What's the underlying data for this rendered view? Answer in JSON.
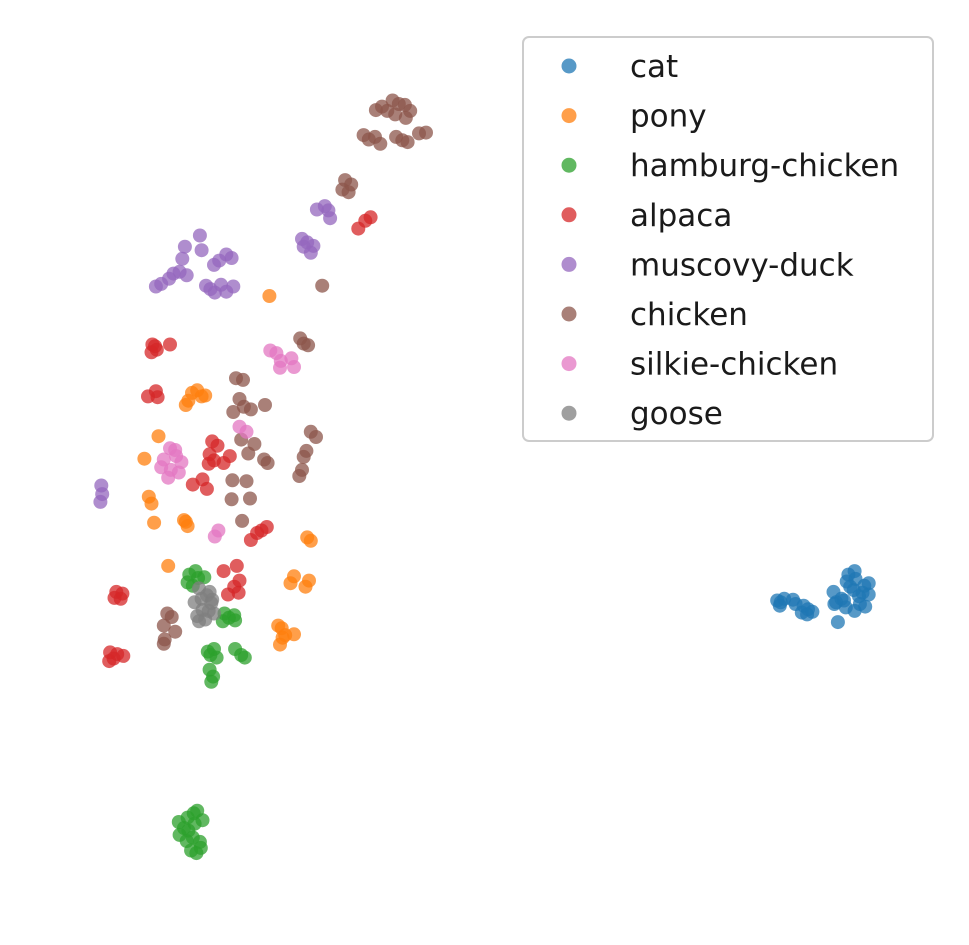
{
  "chart_data": {
    "type": "scatter",
    "title": "",
    "xlabel": "",
    "ylabel": "",
    "axes_visible": false,
    "grid": false,
    "legend_placement": "top-right",
    "xlim": [
      0,
      100
    ],
    "ylim": [
      0,
      100
    ],
    "series": [
      {
        "name": "cat",
        "color": "#1f77b4",
        "points": [
          [
            83.2,
            35.2
          ],
          [
            83.6,
            35.0
          ],
          [
            84.0,
            35.4
          ],
          [
            83.5,
            34.6
          ],
          [
            85.0,
            35.3
          ],
          [
            85.3,
            34.8
          ],
          [
            86.0,
            33.8
          ],
          [
            86.6,
            33.6
          ],
          [
            86.2,
            34.6
          ],
          [
            86.7,
            34.2
          ],
          [
            87.2,
            33.9
          ],
          [
            89.6,
            36.2
          ],
          [
            89.9,
            35.0
          ],
          [
            90.5,
            35.4
          ],
          [
            90.8,
            35.2
          ],
          [
            91.1,
            37.4
          ],
          [
            91.3,
            38.2
          ],
          [
            91.5,
            36.8
          ],
          [
            91.9,
            36.4
          ],
          [
            92.1,
            37.7
          ],
          [
            92.5,
            35.7
          ],
          [
            92.6,
            34.8
          ],
          [
            92.9,
            36.1
          ],
          [
            93.1,
            36.9
          ],
          [
            93.6,
            35.9
          ],
          [
            93.2,
            34.5
          ],
          [
            92.0,
            34.0
          ],
          [
            91.0,
            34.4
          ],
          [
            90.1,
            32.7
          ],
          [
            89.7,
            34.8
          ],
          [
            93.6,
            37.2
          ],
          [
            92.0,
            38.6
          ]
        ]
      },
      {
        "name": "pony",
        "color": "#ff7f0e",
        "points": [
          [
            25.5,
            70.4
          ],
          [
            16.7,
            59.2
          ],
          [
            17.3,
            59.5
          ],
          [
            17.8,
            58.8
          ],
          [
            16.3,
            58.3
          ],
          [
            16.0,
            57.8
          ],
          [
            18.2,
            58.9
          ],
          [
            12.9,
            54.2
          ],
          [
            11.3,
            51.6
          ],
          [
            11.8,
            47.2
          ],
          [
            12.1,
            46.4
          ],
          [
            12.4,
            44.2
          ],
          [
            15.8,
            44.5
          ],
          [
            16.2,
            43.8
          ],
          [
            16.0,
            44.3
          ],
          [
            29.8,
            42.5
          ],
          [
            30.2,
            42.1
          ],
          [
            14.0,
            39.2
          ],
          [
            27.9,
            37.2
          ],
          [
            28.3,
            38.0
          ],
          [
            29.6,
            36.8
          ],
          [
            30.0,
            37.5
          ],
          [
            26.9,
            32.0
          ],
          [
            27.3,
            31.2
          ],
          [
            28.3,
            31.3
          ],
          [
            26.7,
            30.1
          ],
          [
            27.0,
            30.9
          ],
          [
            26.5,
            32.3
          ]
        ]
      },
      {
        "name": "hamburg-chicken",
        "color": "#2ca02c",
        "points": [
          [
            16.4,
            38.2
          ],
          [
            17.1,
            38.6
          ],
          [
            17.4,
            37.8
          ],
          [
            18.1,
            37.9
          ],
          [
            16.2,
            37.3
          ],
          [
            16.8,
            36.9
          ],
          [
            20.4,
            33.7
          ],
          [
            20.9,
            33.2
          ],
          [
            21.5,
            33.5
          ],
          [
            20.2,
            32.8
          ],
          [
            21.6,
            32.9
          ],
          [
            18.5,
            29.3
          ],
          [
            19.2,
            29.6
          ],
          [
            18.8,
            28.9
          ],
          [
            19.5,
            28.6
          ],
          [
            21.6,
            29.6
          ],
          [
            22.3,
            28.9
          ],
          [
            22.7,
            28.6
          ],
          [
            18.7,
            27.2
          ],
          [
            19.1,
            26.4
          ],
          [
            18.9,
            25.8
          ],
          [
            16.2,
            10.1
          ],
          [
            16.9,
            10.6
          ],
          [
            17.3,
            10.9
          ],
          [
            17.9,
            9.8
          ],
          [
            15.2,
            9.6
          ],
          [
            15.8,
            8.9
          ],
          [
            15.3,
            8.1
          ],
          [
            16.1,
            7.4
          ],
          [
            16.6,
            6.3
          ],
          [
            17.2,
            6.0
          ],
          [
            17.7,
            6.6
          ],
          [
            16.8,
            7.8
          ],
          [
            17.6,
            7.3
          ],
          [
            16.3,
            8.6
          ],
          [
            17.0,
            9.4
          ]
        ]
      },
      {
        "name": "alpaca",
        "color": "#d62728",
        "points": [
          [
            37.0,
            79.5
          ],
          [
            36.4,
            79.1
          ],
          [
            35.6,
            78.2
          ],
          [
            12.2,
            64.8
          ],
          [
            12.7,
            64.2
          ],
          [
            14.2,
            64.8
          ],
          [
            12.1,
            63.9
          ],
          [
            12.5,
            64.6
          ],
          [
            11.7,
            58.8
          ],
          [
            12.6,
            59.4
          ],
          [
            12.8,
            58.7
          ],
          [
            19.0,
            53.6
          ],
          [
            19.6,
            53.1
          ],
          [
            18.7,
            52.1
          ],
          [
            19.2,
            51.4
          ],
          [
            20.3,
            51.1
          ],
          [
            21.0,
            51.9
          ],
          [
            18.6,
            51.0
          ],
          [
            17.9,
            49.2
          ],
          [
            18.4,
            48.1
          ],
          [
            16.8,
            48.6
          ],
          [
            25.2,
            43.7
          ],
          [
            24.6,
            43.3
          ],
          [
            24.1,
            43.0
          ],
          [
            23.4,
            42.2
          ],
          [
            20.3,
            38.6
          ],
          [
            21.8,
            39.2
          ],
          [
            22.1,
            37.5
          ],
          [
            21.5,
            36.8
          ],
          [
            22.0,
            36.1
          ],
          [
            20.8,
            35.9
          ],
          [
            8.1,
            36.2
          ],
          [
            8.8,
            36.0
          ],
          [
            7.9,
            35.5
          ],
          [
            8.6,
            35.4
          ],
          [
            7.4,
            29.2
          ],
          [
            8.2,
            29.0
          ],
          [
            7.8,
            28.5
          ],
          [
            8.9,
            28.8
          ],
          [
            7.3,
            28.2
          ]
        ]
      },
      {
        "name": "muscovy-duck",
        "color": "#9467bd",
        "points": [
          [
            31.8,
            80.8
          ],
          [
            32.2,
            80.3
          ],
          [
            30.9,
            80.4
          ],
          [
            32.4,
            79.4
          ],
          [
            29.2,
            77.0
          ],
          [
            29.8,
            76.6
          ],
          [
            30.5,
            76.2
          ],
          [
            29.4,
            76.1
          ],
          [
            30.2,
            75.4
          ],
          [
            17.6,
            77.4
          ],
          [
            15.9,
            76.1
          ],
          [
            17.8,
            75.7
          ],
          [
            20.6,
            75.2
          ],
          [
            21.2,
            74.8
          ],
          [
            19.8,
            74.5
          ],
          [
            19.2,
            74.0
          ],
          [
            15.6,
            74.7
          ],
          [
            15.3,
            73.2
          ],
          [
            14.6,
            73.0
          ],
          [
            14.1,
            72.4
          ],
          [
            13.2,
            71.8
          ],
          [
            12.6,
            71.5
          ],
          [
            16.1,
            72.8
          ],
          [
            18.3,
            71.6
          ],
          [
            18.8,
            71.2
          ],
          [
            19.3,
            70.8
          ],
          [
            20.0,
            71.7
          ],
          [
            20.6,
            70.9
          ],
          [
            21.4,
            71.5
          ],
          [
            6.4,
            48.5
          ],
          [
            6.5,
            47.5
          ],
          [
            6.3,
            46.6
          ]
        ]
      },
      {
        "name": "chicken",
        "color": "#8c564b",
        "points": [
          [
            37.6,
            91.9
          ],
          [
            38.3,
            92.3
          ],
          [
            38.9,
            91.8
          ],
          [
            39.5,
            93.0
          ],
          [
            40.2,
            92.6
          ],
          [
            40.9,
            92.5
          ],
          [
            41.5,
            91.8
          ],
          [
            41.0,
            91.0
          ],
          [
            39.8,
            91.4
          ],
          [
            36.2,
            89.0
          ],
          [
            36.8,
            88.5
          ],
          [
            37.5,
            88.8
          ],
          [
            38.1,
            88.0
          ],
          [
            39.9,
            88.8
          ],
          [
            40.6,
            88.4
          ],
          [
            41.2,
            88.2
          ],
          [
            42.5,
            89.2
          ],
          [
            43.3,
            89.3
          ],
          [
            34.1,
            83.8
          ],
          [
            34.8,
            83.3
          ],
          [
            33.8,
            82.7
          ],
          [
            34.5,
            82.4
          ],
          [
            31.5,
            71.6
          ],
          [
            29.0,
            65.5
          ],
          [
            29.9,
            64.7
          ],
          [
            29.4,
            64.9
          ],
          [
            21.7,
            60.9
          ],
          [
            22.5,
            60.7
          ],
          [
            22.1,
            58.5
          ],
          [
            22.6,
            57.6
          ],
          [
            23.4,
            57.3
          ],
          [
            25.0,
            57.8
          ],
          [
            21.4,
            57.0
          ],
          [
            22.3,
            53.8
          ],
          [
            23.8,
            53.3
          ],
          [
            23.1,
            52.2
          ],
          [
            24.9,
            51.5
          ],
          [
            25.3,
            51.1
          ],
          [
            30.2,
            54.7
          ],
          [
            30.8,
            54.1
          ],
          [
            29.7,
            52.5
          ],
          [
            29.4,
            51.8
          ],
          [
            29.2,
            50.3
          ],
          [
            28.9,
            49.6
          ],
          [
            21.3,
            49.1
          ],
          [
            22.9,
            49.0
          ],
          [
            23.3,
            47.0
          ],
          [
            21.2,
            46.9
          ],
          [
            22.4,
            44.4
          ],
          [
            13.9,
            33.7
          ],
          [
            14.4,
            33.3
          ],
          [
            13.5,
            32.3
          ],
          [
            14.8,
            31.6
          ],
          [
            13.6,
            30.7
          ],
          [
            13.5,
            30.2
          ]
        ]
      },
      {
        "name": "silkie-chicken",
        "color": "#e377c2",
        "points": [
          [
            25.6,
            64.1
          ],
          [
            26.3,
            63.8
          ],
          [
            26.8,
            62.9
          ],
          [
            28.0,
            63.2
          ],
          [
            28.3,
            62.2
          ],
          [
            26.7,
            62.1
          ],
          [
            22.1,
            55.3
          ],
          [
            22.9,
            54.7
          ],
          [
            14.2,
            52.8
          ],
          [
            14.8,
            52.6
          ],
          [
            14.9,
            51.9
          ],
          [
            13.5,
            51.5
          ],
          [
            15.5,
            51.2
          ],
          [
            13.2,
            50.6
          ],
          [
            14.3,
            50.3
          ],
          [
            15.2,
            50.0
          ],
          [
            14.0,
            49.4
          ],
          [
            19.7,
            43.3
          ],
          [
            19.3,
            42.6
          ]
        ]
      },
      {
        "name": "goose",
        "color": "#7f7f7f",
        "points": [
          [
            17.5,
            36.6
          ],
          [
            17.8,
            35.4
          ],
          [
            18.4,
            35.8
          ],
          [
            19.0,
            35.3
          ],
          [
            18.7,
            36.2
          ],
          [
            17.9,
            34.1
          ],
          [
            18.6,
            34.0
          ],
          [
            17.3,
            33.4
          ],
          [
            18.2,
            33.0
          ],
          [
            19.2,
            33.7
          ],
          [
            18.9,
            34.9
          ],
          [
            17.5,
            32.8
          ],
          [
            17.0,
            35.0
          ]
        ]
      }
    ]
  }
}
